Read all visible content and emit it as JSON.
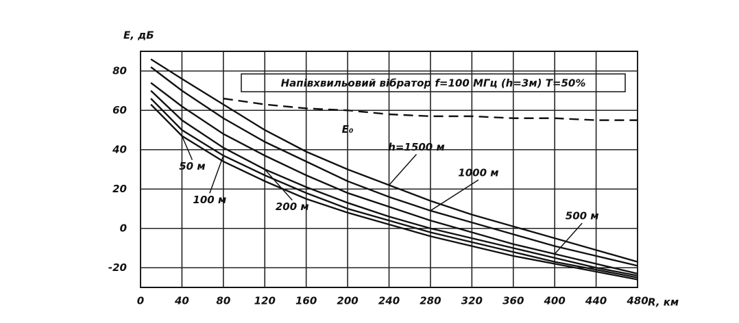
{
  "chart_data": {
    "type": "line",
    "title": "Напівхвильовий вібратор f=100 МГц (h=3м) T=50%",
    "x_label": "R, км",
    "y_label": "E, дБ",
    "x": [
      10,
      40,
      80,
      120,
      160,
      200,
      240,
      280,
      320,
      360,
      400,
      440,
      480
    ],
    "series": [
      {
        "name": "h=1500 м",
        "color": "#111111",
        "values": [
          86,
          76,
          63,
          50,
          39,
          30,
          22,
          14,
          7,
          1,
          -5,
          -11,
          -17
        ]
      },
      {
        "name": "1000 м",
        "color": "#111111",
        "values": [
          82,
          70,
          56,
          44,
          34,
          24,
          16,
          9,
          3,
          -3,
          -9,
          -14,
          -19
        ]
      },
      {
        "name": "500 м",
        "color": "#111111",
        "values": [
          74,
          62,
          48,
          37,
          27,
          18,
          11,
          4,
          -2,
          -8,
          -13,
          -18,
          -23
        ]
      },
      {
        "name": "200 м",
        "color": "#111111",
        "values": [
          70,
          55,
          41,
          30,
          21,
          13,
          6,
          0,
          -5,
          -10,
          -15,
          -20,
          -24
        ]
      },
      {
        "name": "100 м",
        "color": "#111111",
        "values": [
          66,
          50,
          37,
          27,
          18,
          10,
          4,
          -2,
          -7,
          -12,
          -17,
          -21,
          -25
        ]
      },
      {
        "name": "50 м",
        "color": "#111111",
        "values": [
          63,
          47,
          34,
          24,
          15,
          8,
          2,
          -4,
          -9,
          -14,
          -18,
          -22,
          -26
        ]
      },
      {
        "name": "E₀",
        "color": "#111111",
        "dashed": true,
        "values": [
          null,
          null,
          66,
          63,
          61,
          60,
          58,
          57,
          57,
          56,
          56,
          55,
          55
        ]
      }
    ],
    "xlim": [
      0,
      480
    ],
    "ylim": [
      -30,
      90
    ],
    "xticks": [
      0,
      40,
      80,
      120,
      160,
      200,
      240,
      280,
      320,
      360,
      400,
      440,
      480
    ],
    "yticks": [
      -20,
      0,
      20,
      40,
      60,
      80
    ],
    "grid": true
  }
}
